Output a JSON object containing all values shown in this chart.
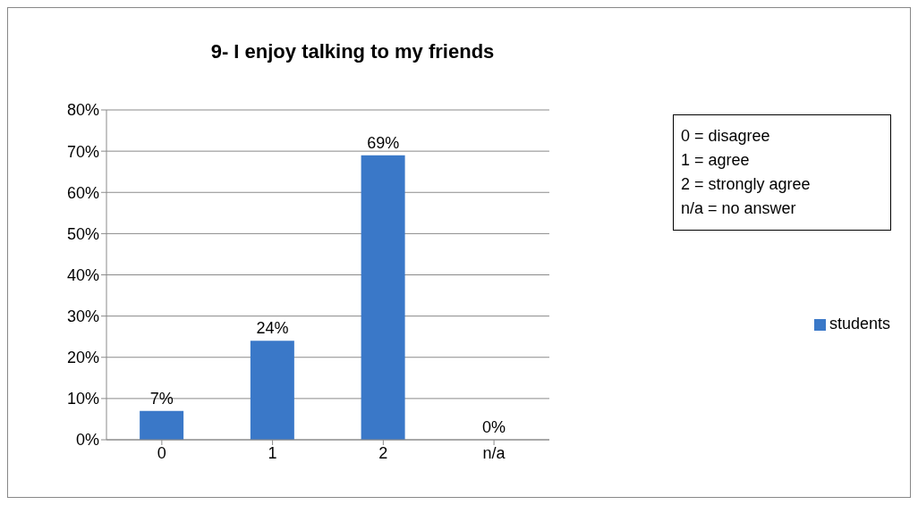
{
  "chart_data": {
    "type": "bar",
    "title": "9- I enjoy talking to my friends",
    "categories": [
      "0",
      "1",
      "2",
      "n/a"
    ],
    "series": [
      {
        "name": "students",
        "color": "#3a78c8",
        "values": [
          7,
          24,
          69,
          0
        ]
      }
    ],
    "value_labels": [
      "7%",
      "24%",
      "69%",
      "0%"
    ],
    "ylim": [
      0,
      80
    ],
    "yticks": [
      {
        "value": 0,
        "label": "0%"
      },
      {
        "value": 10,
        "label": "10%"
      },
      {
        "value": 20,
        "label": "20%"
      },
      {
        "value": 30,
        "label": "30%"
      },
      {
        "value": 40,
        "label": "40%"
      },
      {
        "value": 50,
        "label": "50%"
      },
      {
        "value": 60,
        "label": "60%"
      },
      {
        "value": 70,
        "label": "70%"
      },
      {
        "value": 80,
        "label": "80%"
      }
    ],
    "grid": "y",
    "legend": "right",
    "annotations": [
      "0 = disagree",
      "1 = agree",
      "2 = strongly agree",
      "n/a = no answer"
    ]
  }
}
